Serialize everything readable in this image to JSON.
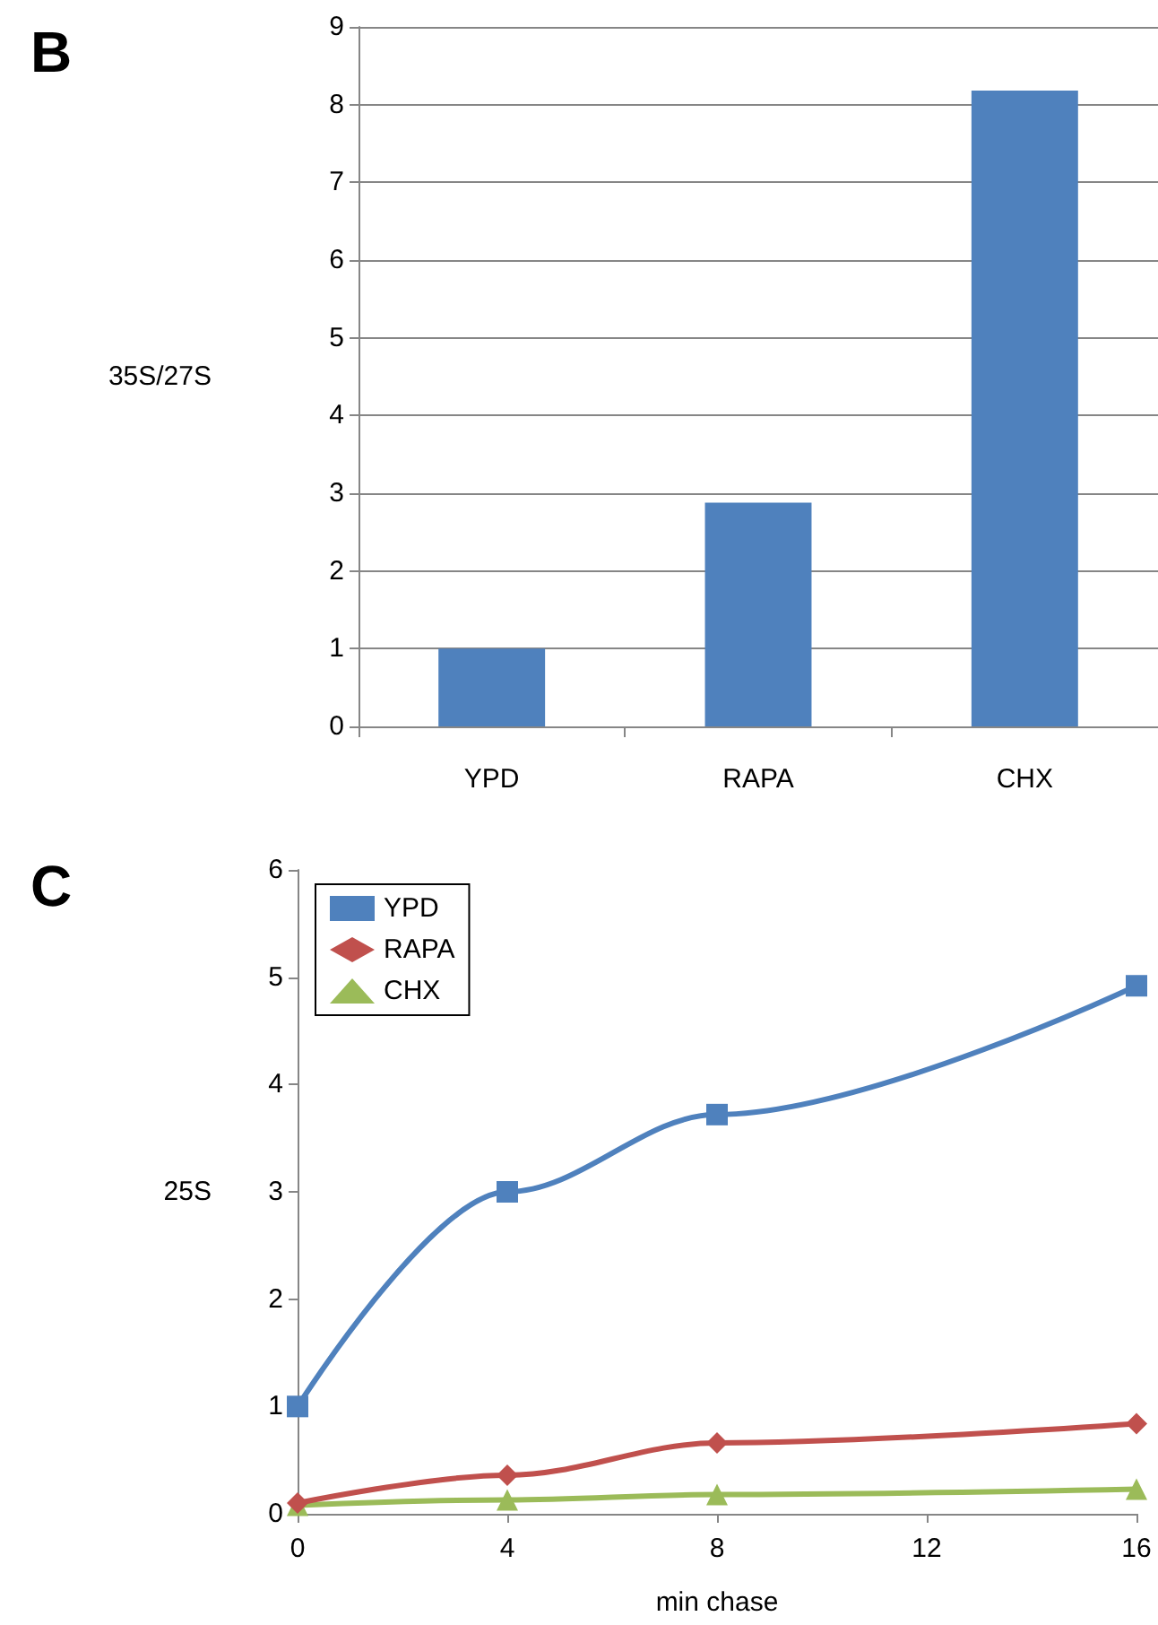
{
  "chart_data": [
    {
      "type": "bar",
      "title": "B",
      "ylabel": "35S/27S",
      "categories": [
        "YPD",
        "RAPA",
        "CHX"
      ],
      "values": [
        1,
        2.88,
        8.18
      ],
      "color": "#4f81bd",
      "ylim": [
        0,
        9
      ],
      "yticks": [
        0,
        1,
        2,
        3,
        4,
        5,
        6,
        7,
        8,
        9
      ],
      "grid": "y",
      "legend": false
    },
    {
      "type": "line",
      "title": "C",
      "ylabel": "25S",
      "xlabel": "min chase",
      "x": [
        0,
        4,
        8,
        16
      ],
      "xlim": [
        0,
        16
      ],
      "xticks": [
        0,
        4,
        8,
        12,
        16
      ],
      "ylim": [
        0,
        6
      ],
      "yticks": [
        0,
        1,
        2,
        3,
        4,
        5,
        6
      ],
      "grid": false,
      "legend": "top left",
      "series": [
        {
          "name": "YPD",
          "color": "#4f81bd",
          "marker": "square",
          "values": [
            1,
            3,
            3.72,
            4.92
          ]
        },
        {
          "name": "RAPA",
          "color": "#c0504d",
          "marker": "diamond",
          "values": [
            0.1,
            0.36,
            0.66,
            0.84
          ]
        },
        {
          "name": "CHX",
          "color": "#9bbb59",
          "marker": "triangle",
          "values": [
            0.08,
            0.13,
            0.18,
            0.23
          ]
        }
      ]
    }
  ]
}
